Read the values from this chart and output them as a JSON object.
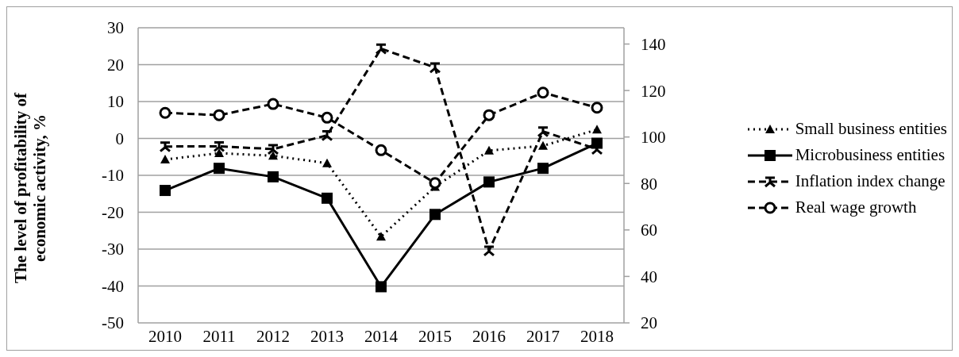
{
  "chart_data": {
    "type": "line",
    "ylabel": "The level of profitability of economic activity, %",
    "categories": [
      "2010",
      "2011",
      "2012",
      "2013",
      "2014",
      "2015",
      "2016",
      "2017",
      "2018"
    ],
    "series": [
      {
        "name": "Small business entities",
        "color": "#000000",
        "marker": "triangle",
        "line_style": "dotted",
        "values": [
          -5.7,
          -4,
          -4.7,
          -6.7,
          -26.6,
          -13.1,
          -3.3,
          -2,
          2.4
        ]
      },
      {
        "name": "Microbusiness entities",
        "color": "#000000",
        "marker": "square",
        "line_style": "solid",
        "values": [
          -14.1,
          -8.1,
          -10.4,
          -16.2,
          -40.2,
          -20.6,
          -11.8,
          -8.1,
          -1.3
        ]
      },
      {
        "name": "Inflation index change",
        "color": "#000000",
        "marker": "cross",
        "line_style": "dashed",
        "axis": "y2",
        "values": [
          95.9,
          96,
          94.8,
          100.7,
          138,
          129.9,
          51.1,
          102.4,
          94.8
        ]
      },
      {
        "name": "Real wage growth",
        "color": "#000000",
        "marker": "circle",
        "line_style": "dashed",
        "axis": "y2",
        "values": [
          110.4,
          109.4,
          114.2,
          108.3,
          94.3,
          80.2,
          109.4,
          119.1,
          112.6
        ]
      }
    ],
    "ylim": [
      -50,
      30
    ],
    "yticks": [
      -50,
      -40,
      -30,
      -20,
      -10,
      0,
      10,
      20,
      30
    ],
    "y2lim": [
      20,
      147
    ],
    "y2ticks": [
      20,
      40,
      60,
      80,
      100,
      120,
      140
    ],
    "grid": "y",
    "legend": "right"
  }
}
